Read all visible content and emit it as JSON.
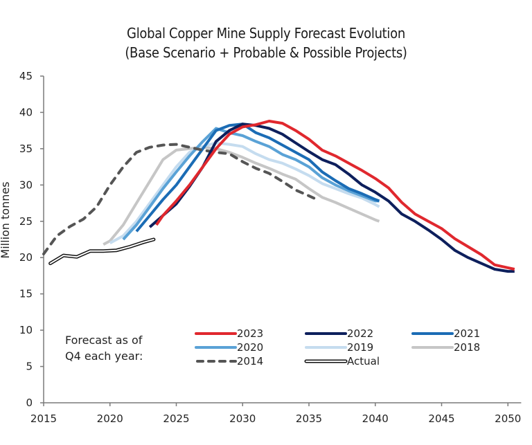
{
  "chart_data": {
    "type": "line",
    "title": "Global Copper Mine Supply Forecast Evolution",
    "subtitle": "(Base Scenario + Probable & Possible Projects)",
    "xlabel": "",
    "ylabel": "Million tonnes",
    "xlim": [
      2015,
      2051
    ],
    "ylim": [
      0,
      45
    ],
    "x_ticks": [
      2015,
      2020,
      2025,
      2030,
      2035,
      2040,
      2045,
      2050
    ],
    "y_ticks": [
      0,
      5,
      10,
      15,
      20,
      25,
      30,
      35,
      40,
      45
    ],
    "grid": false,
    "legend_note": [
      "Forecast as of",
      "Q4 each year:"
    ],
    "legend_position": "bottom-center",
    "series": [
      {
        "name": "2023",
        "color": "#e0282e",
        "style": "solid",
        "x": [
          2023.5,
          2024,
          2025,
          2026,
          2027,
          2028,
          2029,
          2030,
          2031,
          2032,
          2033,
          2034,
          2035,
          2036,
          2037,
          2038,
          2039,
          2040,
          2041,
          2042,
          2043,
          2044,
          2045,
          2046,
          2047,
          2048,
          2049,
          2050,
          2050.5
        ],
        "y": [
          24.5,
          25.8,
          27.8,
          30.0,
          32.5,
          35.0,
          37.0,
          38.0,
          38.3,
          38.8,
          38.5,
          37.5,
          36.3,
          34.8,
          34.0,
          33.0,
          32.0,
          30.9,
          29.6,
          27.6,
          26.0,
          25.0,
          24.0,
          22.6,
          21.5,
          20.4,
          19.0,
          18.6,
          18.4
        ]
      },
      {
        "name": "2022",
        "color": "#0d1f5c",
        "style": "solid",
        "x": [
          2023,
          2024,
          2025,
          2026,
          2027,
          2028,
          2029,
          2030,
          2031,
          2032,
          2033,
          2034,
          2035,
          2036,
          2037,
          2038,
          2039,
          2040,
          2041,
          2042,
          2043,
          2044,
          2045,
          2046,
          2047,
          2048,
          2049,
          2050,
          2050.5
        ],
        "y": [
          24.2,
          25.8,
          27.4,
          29.8,
          32.5,
          36.0,
          37.5,
          38.4,
          38.2,
          37.8,
          37.0,
          35.8,
          34.6,
          33.5,
          32.8,
          31.5,
          30.0,
          29.0,
          27.8,
          26.0,
          25.0,
          23.8,
          22.5,
          21.0,
          20.0,
          19.2,
          18.4,
          18.1,
          18.1
        ]
      },
      {
        "name": "2021",
        "color": "#1b6cb5",
        "style": "solid",
        "x": [
          2022,
          2023,
          2024,
          2025,
          2026,
          2027,
          2028,
          2029,
          2030,
          2031,
          2032,
          2033,
          2034,
          2035,
          2036,
          2037,
          2038,
          2039,
          2040,
          2040.3
        ],
        "y": [
          23.6,
          25.8,
          28.0,
          30.0,
          32.5,
          35.0,
          37.5,
          38.2,
          38.4,
          37.2,
          36.5,
          35.5,
          34.5,
          33.5,
          31.8,
          30.6,
          29.5,
          28.8,
          28.0,
          27.8
        ]
      },
      {
        "name": "2020",
        "color": "#5aa2d6",
        "style": "solid",
        "x": [
          2021,
          2022,
          2023,
          2024,
          2025,
          2026,
          2027,
          2028,
          2029,
          2030,
          2031,
          2032,
          2033,
          2034,
          2035,
          2036,
          2037,
          2038,
          2039,
          2040,
          2040.3
        ],
        "y": [
          22.5,
          24.5,
          27.0,
          29.5,
          31.8,
          34.0,
          36.0,
          37.8,
          37.2,
          36.8,
          36.0,
          35.3,
          34.2,
          33.5,
          32.5,
          31.0,
          30.0,
          29.2,
          28.5,
          27.8,
          27.8
        ]
      },
      {
        "name": "2019",
        "color": "#c5dcef",
        "style": "solid",
        "x": [
          2020,
          2021,
          2022,
          2023,
          2024,
          2025,
          2026,
          2027,
          2028,
          2029,
          2030,
          2031,
          2032,
          2033,
          2034,
          2035,
          2036,
          2037,
          2038,
          2039,
          2040,
          2040.3
        ],
        "y": [
          22.0,
          23.0,
          25.0,
          27.5,
          30.0,
          32.5,
          34.5,
          35.3,
          35.8,
          35.6,
          35.3,
          34.3,
          33.5,
          33.0,
          32.2,
          31.3,
          30.2,
          29.5,
          28.8,
          28.2,
          27.3,
          27.0
        ]
      },
      {
        "name": "2018",
        "color": "#c6c6c6",
        "style": "solid",
        "x": [
          2019.5,
          2020,
          2021,
          2022,
          2023,
          2024,
          2025,
          2026,
          2027,
          2028,
          2029,
          2030,
          2031,
          2032,
          2033,
          2034,
          2035,
          2036,
          2037,
          2038,
          2039,
          2040,
          2040.3
        ],
        "y": [
          21.8,
          22.3,
          24.5,
          27.5,
          30.5,
          33.5,
          34.8,
          35.0,
          35.2,
          35.0,
          34.5,
          33.8,
          33.0,
          32.3,
          31.5,
          30.8,
          29.5,
          28.3,
          27.6,
          26.8,
          26.0,
          25.2,
          25.0
        ]
      },
      {
        "name": "2014",
        "color": "#555555",
        "style": "dashed",
        "x": [
          2015,
          2016,
          2017,
          2018,
          2019,
          2020,
          2021,
          2022,
          2023,
          2024,
          2025,
          2026,
          2027,
          2028,
          2029,
          2030,
          2031,
          2032,
          2033,
          2034,
          2035,
          2035.6
        ],
        "y": [
          20.5,
          23.0,
          24.3,
          25.3,
          27.0,
          30.0,
          32.5,
          34.5,
          35.2,
          35.5,
          35.6,
          35.2,
          34.8,
          34.5,
          34.3,
          33.2,
          32.3,
          31.6,
          30.5,
          29.3,
          28.5,
          28.0
        ]
      },
      {
        "name": "Actual",
        "color": "#111111",
        "style": "outline",
        "x": [
          2015.5,
          2016.5,
          2017.5,
          2018.5,
          2019.5,
          2020.5,
          2021.5,
          2022.5,
          2023.3
        ],
        "y": [
          19.2,
          20.3,
          20.1,
          20.9,
          20.9,
          21.0,
          21.5,
          22.1,
          22.5
        ]
      }
    ]
  },
  "legend": {
    "note_line1": "Forecast as of",
    "note_line2": "Q4 each year:",
    "items": [
      {
        "label": "2023"
      },
      {
        "label": "2022"
      },
      {
        "label": "2021"
      },
      {
        "label": "2020"
      },
      {
        "label": "2019"
      },
      {
        "label": "2018"
      },
      {
        "label": "2014"
      },
      {
        "label": "Actual"
      }
    ]
  }
}
